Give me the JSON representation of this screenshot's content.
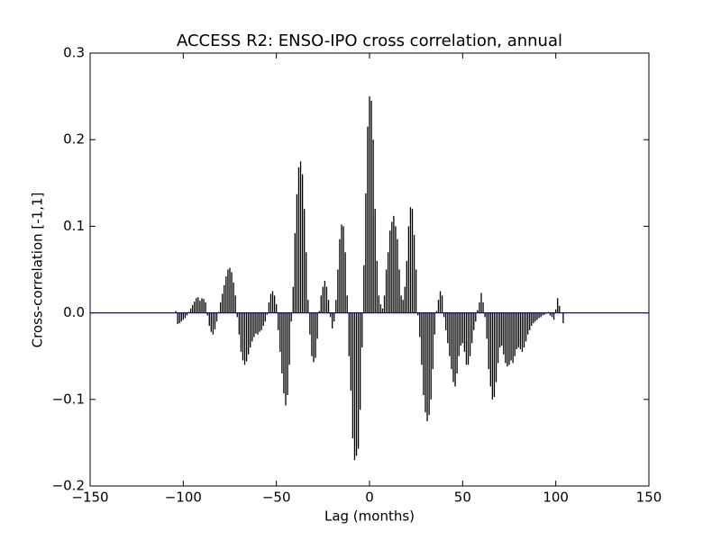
{
  "chart_data": {
    "type": "stem",
    "title": "ACCESS R2: ENSO-IPO cross correlation, annual",
    "x_label": "Lag (months)",
    "y_label": "Cross-correlation [-1,1]",
    "color": "#000000",
    "zero_line_color": "#0000ff",
    "xlim": [
      -150,
      150
    ],
    "ylim": [
      -0.2,
      0.3
    ],
    "xticks": [
      {
        "value": -150,
        "label": "−150"
      },
      {
        "value": -100,
        "label": "−100"
      },
      {
        "value": -50,
        "label": "−50"
      },
      0,
      50,
      100,
      150
    ],
    "yticks": [
      {
        "value": -0.2,
        "label": "−0.2"
      },
      {
        "value": -0.1,
        "label": "−0.1"
      },
      {
        "value": 0.0,
        "label": "0.0"
      },
      0.1,
      0.2,
      0.3
    ],
    "x": [
      -104,
      -103,
      -102,
      -101,
      -100,
      -99,
      -98,
      -97,
      -96,
      -95,
      -94,
      -93,
      -92,
      -91,
      -90,
      -89,
      -88,
      -87,
      -86,
      -85,
      -84,
      -83,
      -82,
      -81,
      -80,
      -79,
      -78,
      -77,
      -76,
      -75,
      -74,
      -73,
      -72,
      -71,
      -70,
      -69,
      -68,
      -67,
      -66,
      -65,
      -64,
      -63,
      -62,
      -61,
      -60,
      -59,
      -58,
      -57,
      -56,
      -55,
      -54,
      -53,
      -52,
      -51,
      -50,
      -49,
      -48,
      -47,
      -46,
      -45,
      -44,
      -43,
      -42,
      -41,
      -40,
      -39,
      -38,
      -37,
      -36,
      -35,
      -34,
      -33,
      -32,
      -31,
      -30,
      -29,
      -28,
      -27,
      -26,
      -25,
      -24,
      -23,
      -22,
      -21,
      -20,
      -19,
      -18,
      -17,
      -16,
      -15,
      -14,
      -13,
      -12,
      -11,
      -10,
      -9,
      -8,
      -7,
      -6,
      -5,
      -4,
      -3,
      -2,
      -1,
      0,
      1,
      2,
      3,
      4,
      5,
      6,
      7,
      8,
      9,
      10,
      11,
      12,
      13,
      14,
      15,
      16,
      17,
      18,
      19,
      20,
      21,
      22,
      23,
      24,
      25,
      26,
      27,
      28,
      29,
      30,
      31,
      32,
      33,
      34,
      35,
      36,
      37,
      38,
      39,
      40,
      41,
      42,
      43,
      44,
      45,
      46,
      47,
      48,
      49,
      50,
      51,
      52,
      53,
      54,
      55,
      56,
      57,
      58,
      59,
      60,
      61,
      62,
      63,
      64,
      65,
      66,
      67,
      68,
      69,
      70,
      71,
      72,
      73,
      74,
      75,
      76,
      77,
      78,
      79,
      80,
      81,
      82,
      83,
      84,
      85,
      86,
      87,
      88,
      89,
      90,
      91,
      92,
      93,
      94,
      95,
      96,
      97,
      98,
      99,
      100,
      101,
      102,
      103,
      104
    ],
    "values": [
      0.002,
      -0.013,
      -0.012,
      -0.01,
      -0.008,
      -0.006,
      -0.003,
      0.001,
      0.005,
      0.009,
      0.013,
      0.017,
      0.018,
      0.014,
      0.017,
      0.016,
      0.012,
      -0.003,
      -0.015,
      -0.022,
      -0.025,
      -0.019,
      -0.01,
      0.001,
      0.012,
      0.022,
      0.032,
      0.042,
      0.05,
      0.052,
      0.047,
      0.035,
      0.02,
      -0.005,
      -0.025,
      -0.045,
      -0.055,
      -0.06,
      -0.056,
      -0.048,
      -0.04,
      -0.033,
      -0.028,
      -0.024,
      -0.025,
      -0.022,
      -0.02,
      -0.015,
      -0.01,
      -0.002,
      0.012,
      0.022,
      0.025,
      0.02,
      0.01,
      -0.02,
      -0.045,
      -0.07,
      -0.093,
      -0.107,
      -0.095,
      -0.06,
      -0.01,
      0.03,
      0.092,
      0.137,
      0.168,
      0.175,
      0.16,
      0.12,
      0.07,
      0.015,
      -0.025,
      -0.05,
      -0.057,
      -0.052,
      -0.03,
      0.002,
      0.02,
      0.03,
      0.037,
      0.03,
      0.015,
      -0.005,
      -0.018,
      -0.01,
      0.015,
      0.05,
      0.085,
      0.102,
      0.1,
      0.07,
      0.02,
      -0.05,
      -0.09,
      -0.145,
      -0.17,
      -0.165,
      -0.157,
      -0.112,
      -0.04,
      0.055,
      0.138,
      0.215,
      0.25,
      0.245,
      0.2,
      0.12,
      0.06,
      0.02,
      0.01,
      0.005,
      0.02,
      0.05,
      0.07,
      0.095,
      0.105,
      0.112,
      0.1,
      0.085,
      0.05,
      0.02,
      0.015,
      0.03,
      0.06,
      0.1,
      0.122,
      0.12,
      0.09,
      0.05,
      -0.003,
      -0.028,
      -0.06,
      -0.095,
      -0.115,
      -0.125,
      -0.118,
      -0.1,
      -0.065,
      -0.025,
      0.002,
      0.015,
      0.025,
      0.02,
      -0.005,
      -0.02,
      -0.035,
      -0.05,
      -0.065,
      -0.08,
      -0.085,
      -0.07,
      -0.05,
      -0.038,
      -0.035,
      -0.045,
      -0.06,
      -0.06,
      -0.05,
      -0.035,
      -0.02,
      -0.01,
      0.003,
      0.012,
      0.023,
      0.012,
      -0.005,
      -0.03,
      -0.065,
      -0.085,
      -0.1,
      -0.097,
      -0.08,
      -0.058,
      -0.04,
      -0.038,
      -0.048,
      -0.058,
      -0.062,
      -0.06,
      -0.055,
      -0.058,
      -0.05,
      -0.042,
      -0.04,
      -0.042,
      -0.045,
      -0.04,
      -0.033,
      -0.025,
      -0.02,
      -0.015,
      -0.012,
      -0.01,
      -0.008,
      -0.006,
      -0.005,
      -0.003,
      -0.002,
      -0.001,
      0.001,
      -0.003,
      -0.005,
      -0.008,
      0.004,
      0.017,
      0.008,
      0.0,
      -0.012
    ]
  }
}
